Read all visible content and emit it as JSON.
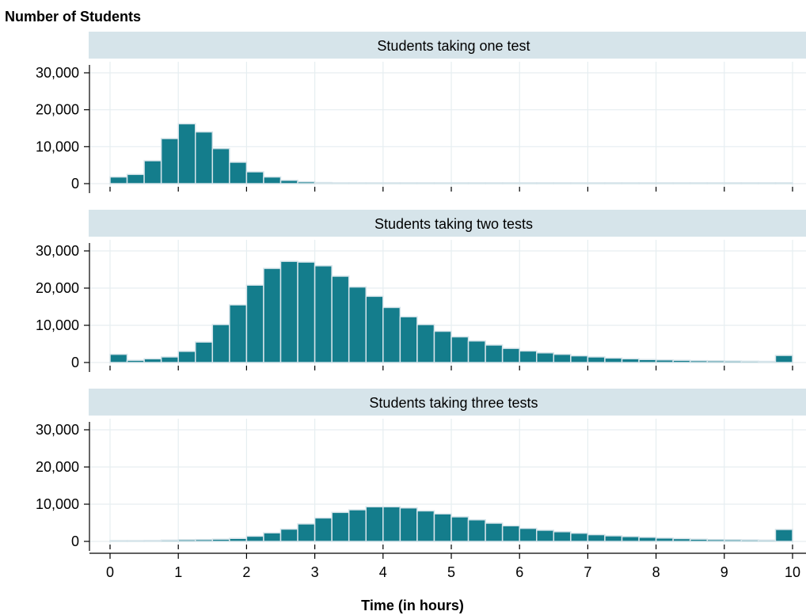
{
  "chart_data": {
    "type": "bar",
    "ylabel": "Number of Students",
    "xlabel": "Time (in hours)",
    "bin_width": 0.25,
    "xlim": [
      0,
      10
    ],
    "ylim": [
      0,
      30000
    ],
    "x_ticks": [
      0,
      1,
      2,
      3,
      4,
      5,
      6,
      7,
      8,
      9,
      10
    ],
    "x_tick_labels": [
      "0",
      "1",
      "2",
      "3",
      "4",
      "5",
      "6",
      "7",
      "8",
      "9",
      "10"
    ],
    "y_ticks": [
      0,
      10000,
      20000,
      30000
    ],
    "y_tick_labels": [
      "0",
      "10,000",
      "20,000",
      "30,000"
    ],
    "grid": true,
    "bar_color": "#147d8c",
    "strip_color": "#d6e4ea",
    "panels": [
      {
        "title": "Students taking one test",
        "bin_starts": [
          0,
          0.25,
          0.5,
          0.75,
          1,
          1.25,
          1.5,
          1.75,
          2,
          2.25,
          2.5,
          2.75,
          3,
          3.25,
          3.5,
          3.75,
          4,
          4.25,
          4.5,
          4.75,
          5,
          5.25,
          5.5,
          5.75,
          6,
          6.25,
          6.5,
          6.75,
          7,
          7.25,
          7.5,
          7.75,
          8,
          8.25,
          8.5,
          8.75,
          9,
          9.25,
          9.5,
          9.75
        ],
        "values": [
          1800,
          2500,
          6200,
          12200,
          16200,
          14000,
          9500,
          5800,
          3200,
          1800,
          900,
          500,
          300,
          200,
          150,
          120,
          100,
          90,
          80,
          70,
          60,
          60,
          50,
          50,
          40,
          40,
          40,
          30,
          30,
          30,
          30,
          30,
          30,
          30,
          20,
          20,
          20,
          20,
          20,
          20
        ]
      },
      {
        "title": "Students taking two tests",
        "bin_starts": [
          0,
          0.25,
          0.5,
          0.75,
          1,
          1.25,
          1.5,
          1.75,
          2,
          2.25,
          2.5,
          2.75,
          3,
          3.25,
          3.5,
          3.75,
          4,
          4.25,
          4.5,
          4.75,
          5,
          5.25,
          5.5,
          5.75,
          6,
          6.25,
          6.5,
          6.75,
          7,
          7.25,
          7.5,
          7.75,
          8,
          8.25,
          8.5,
          8.75,
          9,
          9.25,
          9.5,
          9.75
        ],
        "values": [
          2200,
          600,
          1000,
          1500,
          3000,
          5500,
          10200,
          15500,
          20800,
          25300,
          27200,
          27000,
          26000,
          23200,
          20300,
          17800,
          14800,
          12300,
          10200,
          8400,
          6900,
          5800,
          4700,
          3800,
          3100,
          2600,
          2200,
          1800,
          1500,
          1200,
          1000,
          800,
          700,
          600,
          500,
          450,
          400,
          350,
          300,
          1900
        ]
      },
      {
        "title": "Students taking three tests",
        "bin_starts": [
          0,
          0.25,
          0.5,
          0.75,
          1,
          1.25,
          1.5,
          1.75,
          2,
          2.25,
          2.5,
          2.75,
          3,
          3.25,
          3.5,
          3.75,
          4,
          4.25,
          4.5,
          4.75,
          5,
          5.25,
          5.5,
          5.75,
          6,
          6.25,
          6.5,
          6.75,
          7,
          7.25,
          7.5,
          7.75,
          8,
          8.25,
          8.5,
          8.75,
          9,
          9.25,
          9.5,
          9.75
        ],
        "values": [
          200,
          200,
          250,
          350,
          450,
          500,
          600,
          800,
          1400,
          2300,
          3300,
          4700,
          6300,
          7800,
          8500,
          9300,
          9300,
          9000,
          8200,
          7400,
          6600,
          5800,
          4900,
          4200,
          3500,
          3000,
          2600,
          2200,
          1800,
          1500,
          1300,
          1100,
          900,
          750,
          600,
          500,
          450,
          400,
          350,
          3200
        ]
      }
    ]
  }
}
